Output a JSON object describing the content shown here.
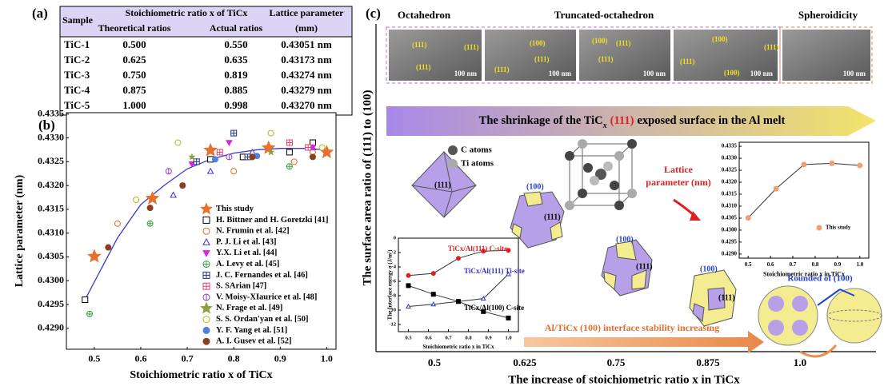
{
  "panel_a": {
    "label": "(a)",
    "table": {
      "header": [
        "Sample",
        "Stoichiometric ratio x of TiCx",
        "Lattice parameter"
      ],
      "subheader": [
        "Theoretical ratios",
        "Actual ratios",
        "(mm)"
      ],
      "rows": [
        [
          "TiC-1",
          "0.500",
          "0.550",
          "0.43051 nm"
        ],
        [
          "TiC-2",
          "0.625",
          "0.635",
          "0.43173 nm"
        ],
        [
          "TiC-3",
          "0.750",
          "0.819",
          "0.43274 nm"
        ],
        [
          "TiC-4",
          "0.875",
          "0.885",
          "0.43279 nm"
        ],
        [
          "TiC-5",
          "1.000",
          "0.998",
          "0.43270 nm"
        ]
      ]
    }
  },
  "panel_b": {
    "label": "(b)"
  },
  "chart_data": [
    {
      "type": "scatter",
      "xlabel": "Stoichiometric ratio x of TiCx",
      "ylabel": "Lattice parameter (nm)",
      "xlim": [
        0.44,
        1.02
      ],
      "ylim": [
        0.42856,
        0.43353
      ],
      "xticks": [
        0.5,
        0.6,
        0.7,
        0.8,
        0.9,
        {
          "value": 1,
          "label": "1.0"
        }
      ],
      "yticks": [
        {
          "value": 0.429,
          "label": "0.4290"
        },
        {
          "value": 0.4295,
          "label": "0.4295"
        },
        {
          "value": 0.43,
          "label": "0.4300"
        },
        {
          "value": 0.4305,
          "label": "0.4305"
        },
        {
          "value": 0.431,
          "label": "0.4310"
        },
        {
          "value": 0.4315,
          "label": "0.4315"
        },
        {
          "value": 0.432,
          "label": "0.4320"
        },
        {
          "value": 0.4325,
          "label": "0.4325"
        },
        {
          "value": 0.433,
          "label": "0.4330"
        },
        {
          "value": 0.4335,
          "label": "0.4335"
        }
      ],
      "legend": "lower right",
      "series": [
        {
          "color": "#3a3ad0",
          "line": true,
          "x": [
            0.48,
            0.55,
            0.6,
            0.65,
            0.7,
            0.75,
            0.8,
            0.85,
            0.9,
            0.95,
            1.0
          ],
          "values": [
            0.4296,
            0.4309,
            0.4316,
            0.432,
            0.43235,
            0.43255,
            0.43268,
            0.43275,
            0.43278,
            0.43278,
            0.43275
          ]
        },
        {
          "name": "This study",
          "color": "#e8702a",
          "marker": "star",
          "filled": true,
          "x": [
            0.5,
            0.625,
            0.75,
            0.875,
            1.0
          ],
          "values": [
            0.43051,
            0.43173,
            0.43274,
            0.43279,
            0.4327
          ]
        },
        {
          "name": "H. Bittner and H. Goretzki [41]",
          "color": "#000000",
          "marker": "square",
          "filled": false,
          "x": [
            0.48,
            0.75,
            0.82,
            0.92,
            0.97
          ],
          "values": [
            0.4296,
            0.43255,
            0.4326,
            0.4327,
            0.4329
          ]
        },
        {
          "name": "N. Frumin et al. [42]",
          "color": "#e07020",
          "marker": "circle",
          "filled": false,
          "x": [
            0.55,
            0.8,
            0.93,
            0.97
          ],
          "values": [
            0.4312,
            0.4323,
            0.4325,
            0.4327
          ]
        },
        {
          "name": "P. J. Li et al. [43]",
          "color": "#3030e0",
          "marker": "triangle",
          "filled": false,
          "x": [
            0.67,
            0.75,
            0.84,
            0.97
          ],
          "values": [
            0.4318,
            0.4323,
            0.4327,
            0.4328
          ]
        },
        {
          "name": "Y.X. Li et al. [44]",
          "color": "#e020e0",
          "marker": "triangle-down",
          "filled": true,
          "x": [
            0.71,
            0.79,
            0.97
          ],
          "values": [
            0.43245,
            0.4329,
            0.4328
          ]
        },
        {
          "name": "A. Levy et al. [45]",
          "color": "#40a040",
          "marker": "circle-cross",
          "filled": false,
          "x": [
            0.49,
            0.62,
            0.84,
            0.92
          ],
          "values": [
            0.4293,
            0.4312,
            0.4326,
            0.4324
          ]
        },
        {
          "name": "J. C. Fernandes et al. [46]",
          "color": "#203080",
          "marker": "square-cross",
          "filled": false,
          "x": [
            0.72,
            0.8,
            0.83
          ],
          "values": [
            0.4325,
            0.4331,
            0.4326
          ]
        },
        {
          "name": "S. SArian [47]",
          "color": "#e04070",
          "marker": "square-cross",
          "filled": false,
          "x": [
            0.77,
            0.92,
            0.96
          ],
          "values": [
            0.4327,
            0.4329,
            0.4328
          ]
        },
        {
          "name": "V. Moisy-XIaurice et al. [48]",
          "color": "#9040c0",
          "marker": "circle-vline",
          "filled": false,
          "x": [
            0.66,
            0.79
          ],
          "values": [
            0.4323,
            0.4326
          ]
        },
        {
          "name": "N. Frage et al. [49]",
          "color": "#90a040",
          "marker": "star",
          "filled": true,
          "x": [
            0.71,
            0.88
          ],
          "values": [
            0.4326,
            0.4327
          ]
        },
        {
          "name": "S. S. Ordan'yan et al. [50]",
          "color": "#b8b818",
          "marker": "circle",
          "filled": false,
          "x": [
            0.59,
            0.68,
            0.88,
            0.99
          ],
          "values": [
            0.4317,
            0.4329,
            0.4331,
            0.4328
          ]
        },
        {
          "name": "Y. F. Yang et al. [51]",
          "color": "#5080e0",
          "marker": "circle",
          "filled": true,
          "x": [
            0.76,
            0.85
          ],
          "values": [
            0.43255,
            0.43262
          ]
        },
        {
          "name": "A. I. Gusev et al. [52]",
          "color": "#8b4020",
          "marker": "circle",
          "filled": true,
          "x": [
            0.53,
            0.62,
            0.69,
            0.84,
            0.97
          ],
          "values": [
            0.4307,
            0.43153,
            0.432,
            0.4326,
            0.4326
          ]
        }
      ]
    },
    {
      "type": "line",
      "xlabel": "Stoichiometric ratio x in TiCx",
      "xlim": [
        0.46,
        1.04
      ],
      "ylim": [
        0.42883,
        0.43367
      ],
      "xticks": [
        0.5,
        0.6,
        0.7,
        0.8,
        0.9,
        {
          "value": 1,
          "label": "1.0"
        }
      ],
      "yticks": [
        {
          "value": 0.429,
          "label": "0.4290"
        },
        {
          "value": 0.4295,
          "label": "0.4295"
        },
        {
          "value": 0.43,
          "label": "0.4300"
        },
        {
          "value": 0.4305,
          "label": "0.4305"
        },
        {
          "value": 0.431,
          "label": "0.4310"
        },
        {
          "value": 0.4315,
          "label": "0.4315"
        },
        {
          "value": 0.432,
          "label": "0.4320"
        },
        {
          "value": 0.4325,
          "label": "0.4325"
        },
        {
          "value": 0.433,
          "label": "0.4330"
        },
        {
          "value": 0.4335,
          "label": "0.4335"
        }
      ],
      "legend": "inside right",
      "x": [
        0.5,
        0.625,
        0.75,
        0.875,
        1.0
      ],
      "series": [
        {
          "name": "This study",
          "color": "#f0a070",
          "line": true,
          "marker": "circle",
          "filled": true,
          "values": [
            0.43051,
            0.43173,
            0.43274,
            0.43279,
            0.4327
          ]
        }
      ]
    },
    {
      "type": "line",
      "xlabel": "Stoichiometric ratio x in TiCx",
      "ylabel": "The Interface energy σ (J/m²)",
      "xlim": [
        0.45,
        1.05
      ],
      "ylim": [
        -13,
        0
      ],
      "xticks": [
        0.5,
        0.6,
        0.7,
        0.8,
        0.9,
        {
          "value": 1,
          "label": "1.0"
        }
      ],
      "yticks": [
        0,
        -2,
        -4,
        -6,
        -8,
        -10,
        -12
      ],
      "x": [
        0.5,
        0.625,
        0.75,
        0.875,
        1.0
      ],
      "series": [
        {
          "name": "TiCx/Al(111) C-site",
          "color": "#e02020",
          "line": true,
          "marker": "circle",
          "filled": true,
          "values": [
            -5.2,
            -4.9,
            -2.8,
            -1.8,
            -1.7
          ]
        },
        {
          "name": "TiCx/Al(111) Ti-site",
          "color": "#3030d0",
          "line": true,
          "marker": "triangle",
          "filled": false,
          "values": [
            -9.5,
            -9.2,
            -8.8,
            -8.4,
            -5.0
          ]
        },
        {
          "name": "TiCx/Al(100) C-site",
          "color": "#000000",
          "line": true,
          "marker": "square",
          "filled": true,
          "values": [
            -6.6,
            -7.8,
            -8.8,
            -10.2,
            -11.1
          ]
        }
      ]
    }
  ],
  "panel_c": {
    "label": "(c)",
    "shape_titles": [
      "Octahedron",
      "Truncated-octahedron",
      "Spheroidicity"
    ],
    "images": [
      {
        "labels": [
          "(111)",
          "(111)",
          "(111)"
        ],
        "scale": "100 nm"
      },
      {
        "labels": [
          "(100)",
          "(111)",
          "(111)"
        ],
        "scale": "100 nm"
      },
      {
        "labels": [
          "(100)",
          "(111)",
          "(111)"
        ],
        "scale": "100 nm"
      },
      {
        "labels": [
          "(100)",
          "(111)",
          "(111)",
          "(100)"
        ],
        "scale": "100 nm"
      },
      {
        "scale": "100 nm"
      }
    ],
    "banner": [
      "The shrinkage of the TiC",
      "x",
      "(111)",
      "exposed surface in the Al melt"
    ],
    "atoms": [
      "C atoms",
      "Ti atoms"
    ],
    "lattice_note": [
      "Lattice",
      "parameter (nm)"
    ],
    "facets": [
      "(111)",
      "(100)",
      "(111)",
      "(100)",
      "(111)",
      "(100)",
      "(111)"
    ],
    "stability": "Al/TiCx (100) interface stability increasing",
    "rounded": "Rounded of (100)",
    "ylabel": "The surface area ratio of (111) to (100)",
    "x_tick_labels": [
      "0.5",
      "0.625",
      "0.75",
      "0.875",
      "1.0"
    ],
    "xlabel": "The increase of stoichiometric ratio x in TiCx"
  }
}
